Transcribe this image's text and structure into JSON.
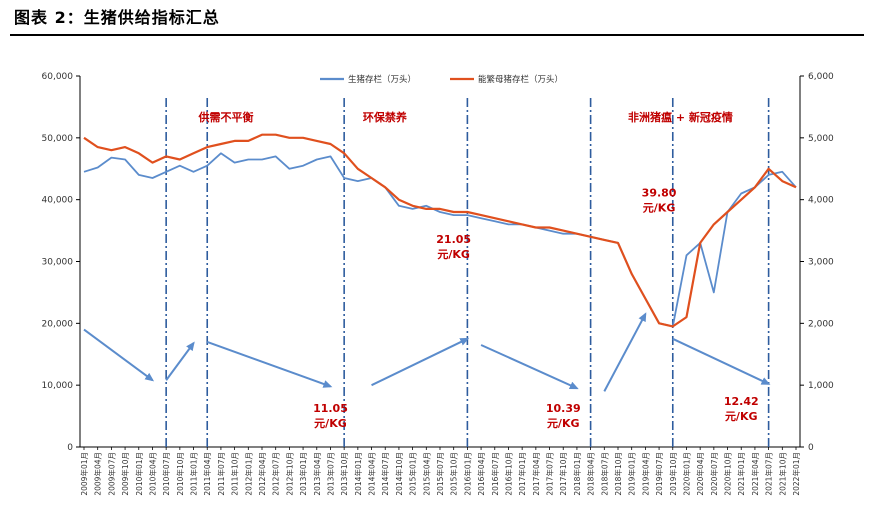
{
  "figure": {
    "title": "图表 2：生猪供给指标汇总"
  },
  "colors": {
    "series1": "#5b8ccc",
    "series2": "#e0501e",
    "arrow": "#5b8ccc",
    "divider": "#2e5c9e",
    "annotation": "#c00000"
  },
  "chart_data": {
    "type": "line",
    "title": "",
    "xlabel": "",
    "ylabel": "",
    "ylim_left": [
      0,
      60000
    ],
    "ylim_right": [
      0,
      6000
    ],
    "yticks_left": [
      "0",
      "10,000",
      "20,000",
      "30,000",
      "40,000",
      "50,000",
      "60,000"
    ],
    "yticks_right": [
      "0",
      "1,000",
      "2,000",
      "3,000",
      "4,000",
      "5,000",
      "6,000"
    ],
    "grid": false,
    "legend": "top-center",
    "x": [
      "2009年01月",
      "2009年04月",
      "2009年07月",
      "2009年10月",
      "2010年01月",
      "2010年04月",
      "2010年07月",
      "2010年10月",
      "2011年01月",
      "2011年04月",
      "2011年07月",
      "2011年10月",
      "2012年01月",
      "2012年04月",
      "2012年07月",
      "2012年10月",
      "2013年01月",
      "2013年04月",
      "2013年07月",
      "2013年10月",
      "2014年01月",
      "2014年04月",
      "2014年07月",
      "2014年10月",
      "2015年01月",
      "2015年04月",
      "2015年07月",
      "2015年10月",
      "2016年01月",
      "2016年04月",
      "2016年07月",
      "2016年10月",
      "2017年01月",
      "2017年04月",
      "2017年07月",
      "2017年10月",
      "2018年01月",
      "2018年04月",
      "2018年07月",
      "2018年10月",
      "2019年01月",
      "2019年04月",
      "2019年07月",
      "2019年10月",
      "2020年01月",
      "2020年04月",
      "2020年07月",
      "2020年10月",
      "2021年01月",
      "2021年04月",
      "2021年07月",
      "2021年10月",
      "2022年01月"
    ],
    "series": [
      {
        "name": "生猪存栏（万头）",
        "axis": "left",
        "values": [
          44500,
          45200,
          46800,
          46500,
          44000,
          43500,
          44500,
          45500,
          44500,
          45500,
          47500,
          46000,
          46500,
          46500,
          47000,
          45000,
          45500,
          46500,
          47000,
          43500,
          43000,
          43500,
          42000,
          39000,
          38500,
          39000,
          38000,
          37500,
          37500,
          37000,
          36500,
          36000,
          36000,
          35500,
          35000,
          34500,
          34500,
          34000,
          33500,
          33000,
          28000,
          24000,
          20000,
          19500,
          31000,
          33000,
          25000,
          38000,
          41000,
          42000,
          44000,
          44500,
          42000
        ]
      },
      {
        "name": "能繁母猪存栏（万头）",
        "axis": "right",
        "values": [
          5000,
          4850,
          4800,
          4850,
          4750,
          4600,
          4700,
          4650,
          4750,
          4850,
          4900,
          4950,
          4950,
          5050,
          5050,
          5000,
          5000,
          4950,
          4900,
          4750,
          4500,
          4350,
          4200,
          4000,
          3900,
          3850,
          3850,
          3800,
          3800,
          3750,
          3700,
          3650,
          3600,
          3550,
          3550,
          3500,
          3450,
          3400,
          3350,
          3300,
          2800,
          2400,
          2000,
          1950,
          2100,
          3300,
          3600,
          3800,
          4000,
          4200,
          4500,
          4300,
          4200
        ]
      }
    ],
    "dividers": [
      "2010年07月",
      "2011年04月",
      "2013年10月",
      "2016年01月",
      "2018年04月",
      "2019年10月",
      "2021年07月"
    ],
    "regions": [
      {
        "label": "供需不平衡",
        "at": "2011年01月"
      },
      {
        "label": "环保禁养",
        "at": "2014年01月"
      },
      {
        "label": "非洲猪瘟 + 新冠疫情",
        "at": "2018年10月"
      }
    ],
    "price_labels": [
      {
        "value": "11.05",
        "unit": "元/KG",
        "at": "2013年07月",
        "y": 5700
      },
      {
        "value": "21.05",
        "unit": "元/KG",
        "at": "2015年10月",
        "y": 33000
      },
      {
        "value": "10.39",
        "unit": "元/KG",
        "at": "2017年10月",
        "y": 5700
      },
      {
        "value": "39.80",
        "unit": "元/KG",
        "at": "2019年07月",
        "y": 40500
      },
      {
        "value": "12.42",
        "unit": "元/KG",
        "at": "2021年01月",
        "y": 6800
      }
    ],
    "trend_arrows": [
      {
        "from": [
          "2009年01月",
          19000
        ],
        "to": [
          "2010年04月",
          10800
        ]
      },
      {
        "from": [
          "2010年07月",
          10800
        ],
        "to": [
          "2011年01月",
          16800
        ]
      },
      {
        "from": [
          "2011年04月",
          17000
        ],
        "to": [
          "2013年07月",
          9800
        ]
      },
      {
        "from": [
          "2014年04月",
          10000
        ],
        "to": [
          "2016年01月",
          17500
        ]
      },
      {
        "from": [
          "2016年04月",
          16500
        ],
        "to": [
          "2018年01月",
          9500
        ]
      },
      {
        "from": [
          "2018年07月",
          9000
        ],
        "to": [
          "2019年04月",
          21500
        ]
      },
      {
        "from": [
          "2019年10月",
          17500
        ],
        "to": [
          "2021年07月",
          10200
        ]
      }
    ]
  }
}
